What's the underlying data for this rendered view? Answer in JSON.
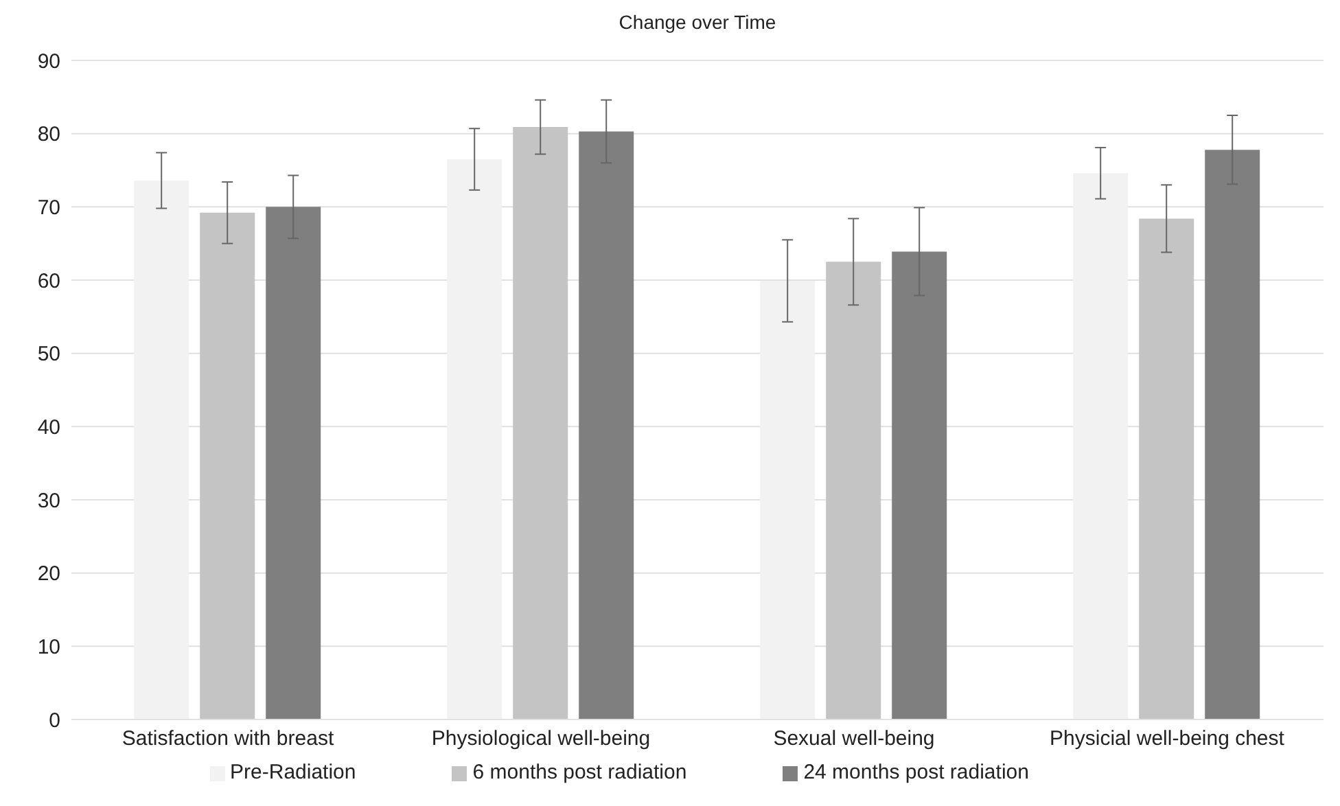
{
  "chart_data": {
    "type": "bar",
    "title": "Change over Time",
    "categories": [
      "Satisfaction with breast",
      "Physiological well-being",
      "Sexual well-being",
      "Physicial well-being chest"
    ],
    "series": [
      {
        "name": "Pre-Radiation",
        "color": "#f2f2f2",
        "values": [
          73.6,
          76.5,
          59.9,
          74.6
        ],
        "errors": [
          3.8,
          4.2,
          5.6,
          3.5
        ]
      },
      {
        "name": "6 months post radiation",
        "color": "#c4c4c4",
        "values": [
          69.2,
          80.9,
          62.5,
          68.4
        ],
        "errors": [
          4.2,
          3.7,
          5.9,
          4.6
        ]
      },
      {
        "name": "24 months post radiation",
        "color": "#7f7f7f",
        "values": [
          70.0,
          80.3,
          63.9,
          77.8
        ],
        "errors": [
          4.3,
          4.3,
          6.0,
          4.7
        ]
      }
    ],
    "ylim": [
      0,
      90
    ],
    "yticks": [
      0,
      10,
      20,
      30,
      40,
      50,
      60,
      70,
      80,
      90
    ],
    "grid": "y",
    "legend": "bottom"
  }
}
